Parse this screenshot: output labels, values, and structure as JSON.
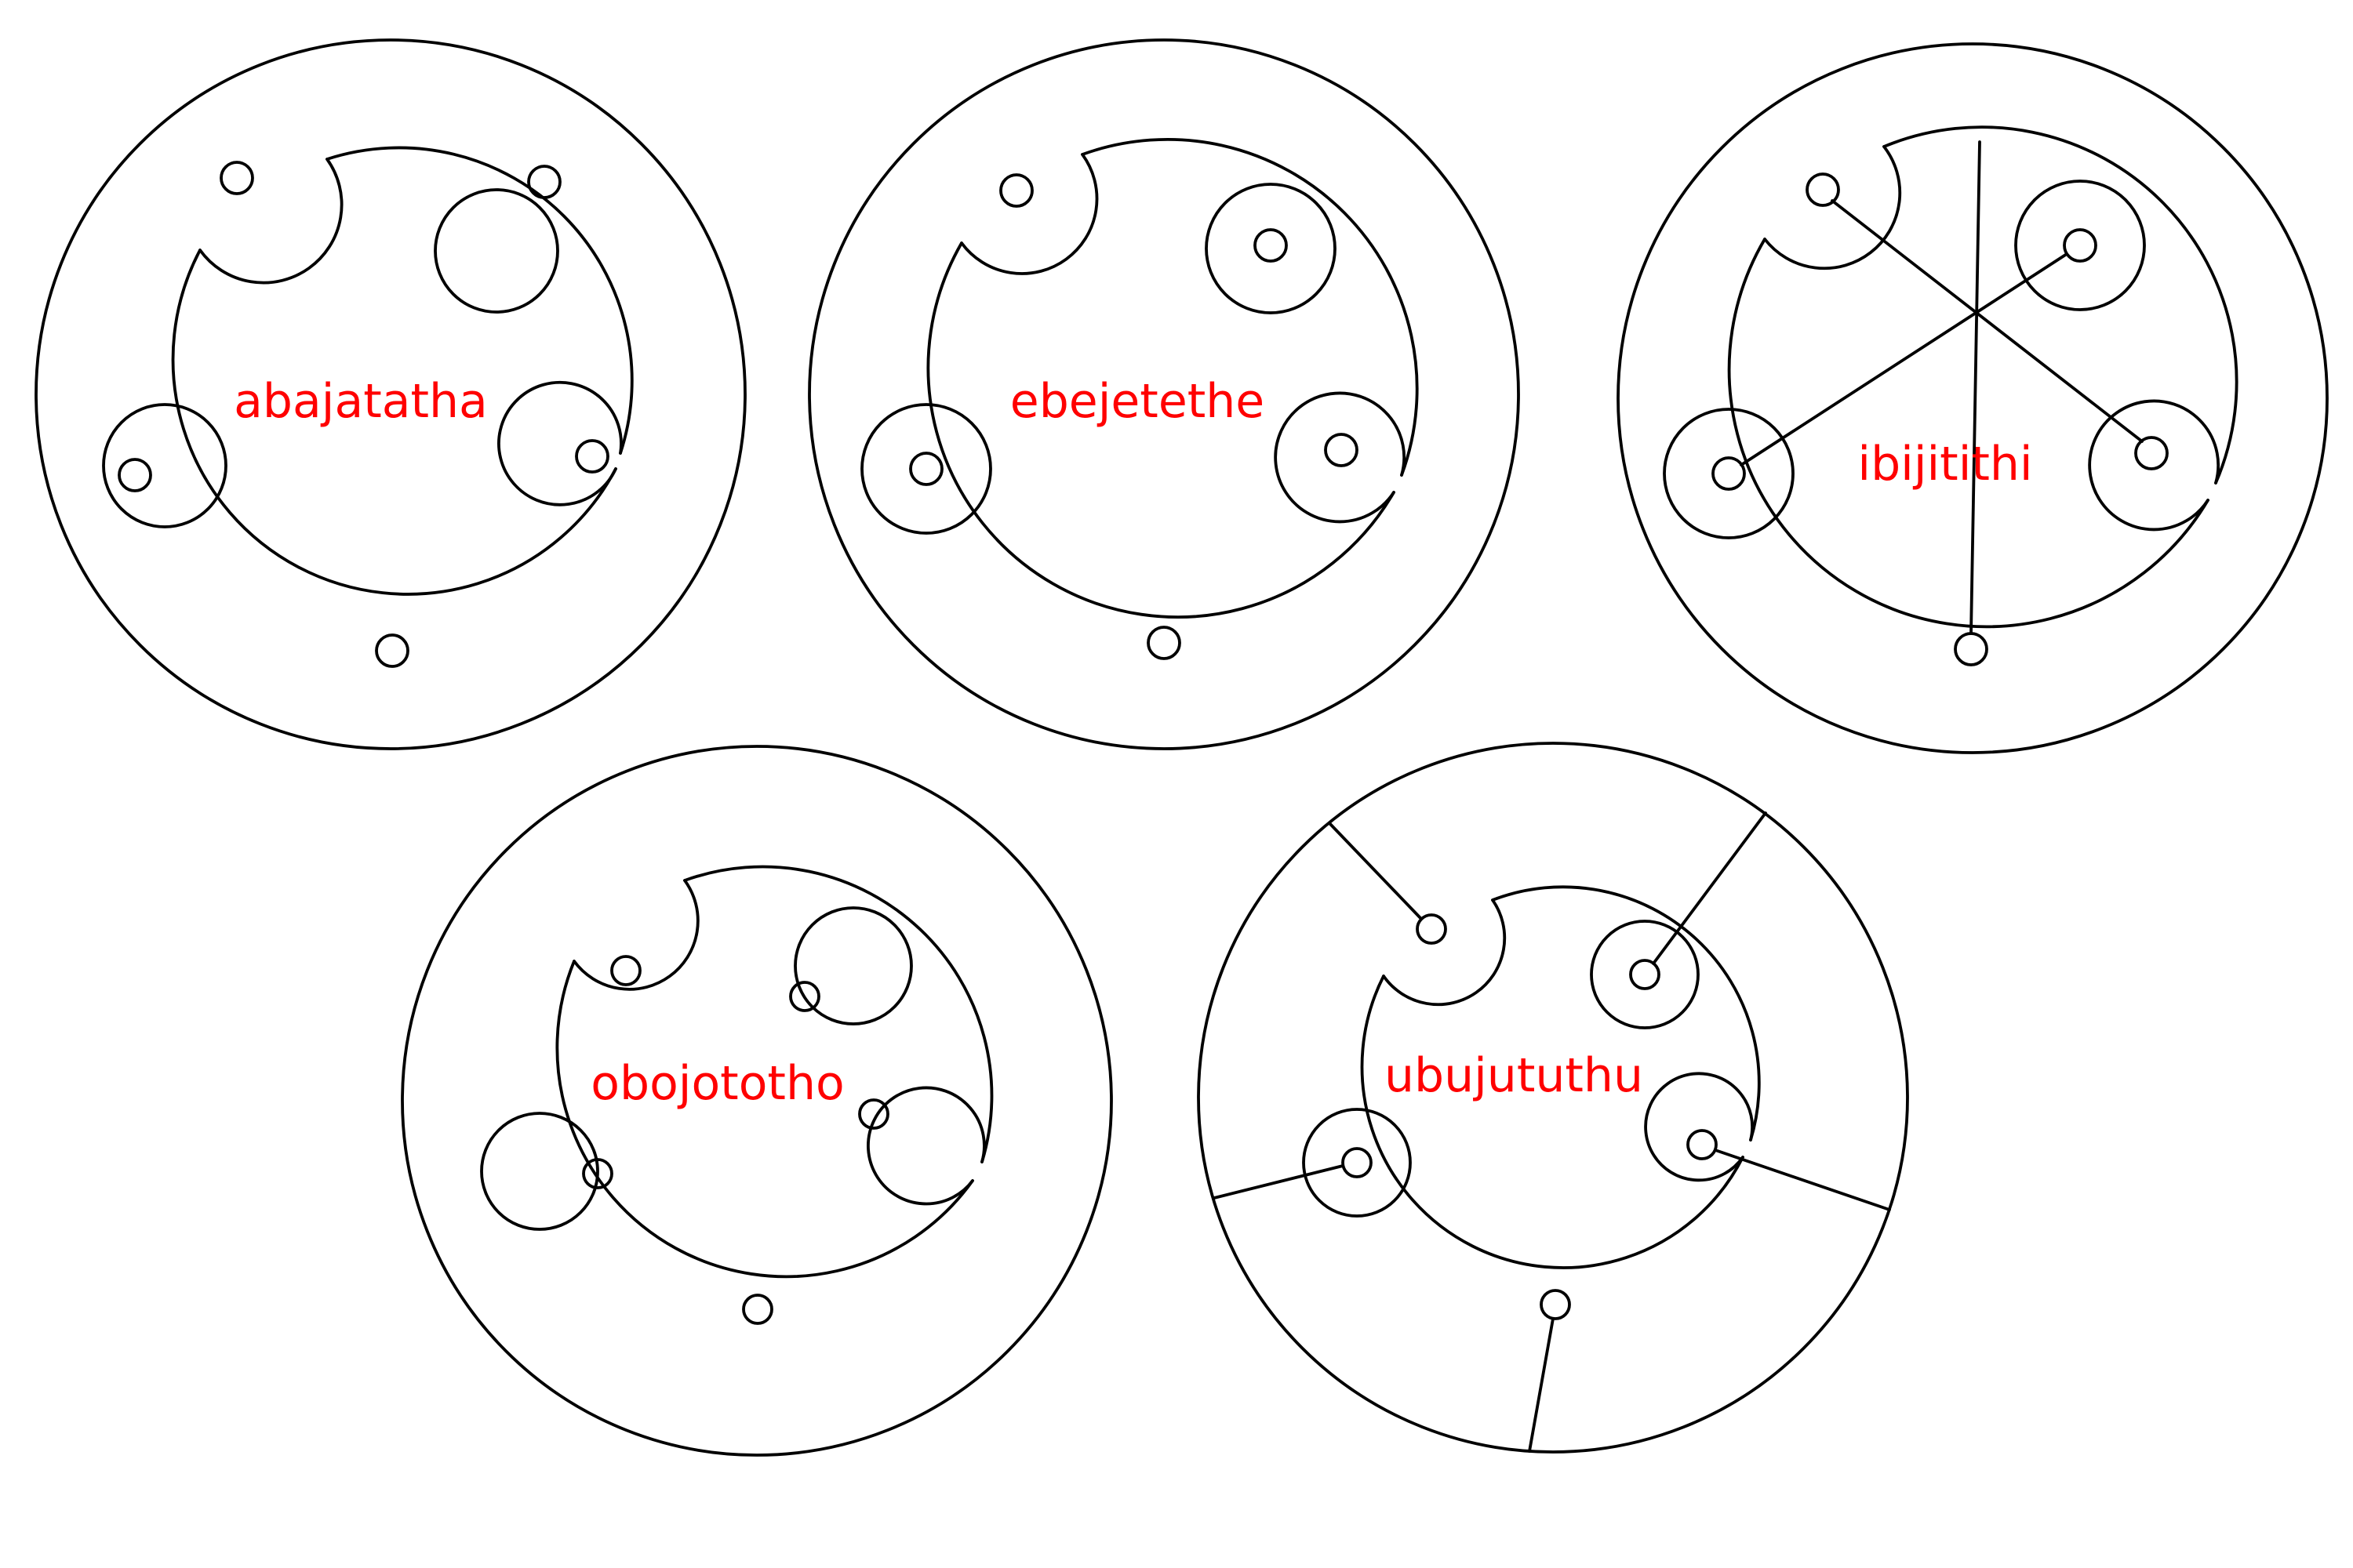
{
  "colors": {
    "ink": "#000000",
    "label": "#ff0000",
    "background": "#ffffff"
  },
  "figures": [
    {
      "id": "abajatatha",
      "word": "abajatatha"
    },
    {
      "id": "ebejetethe",
      "word": "ebejetethe"
    },
    {
      "id": "ibijitithi",
      "word": "ibijitithi"
    },
    {
      "id": "obojototho",
      "word": "obojototho"
    },
    {
      "id": "ubujututhu",
      "word": "ubujututhu"
    }
  ]
}
